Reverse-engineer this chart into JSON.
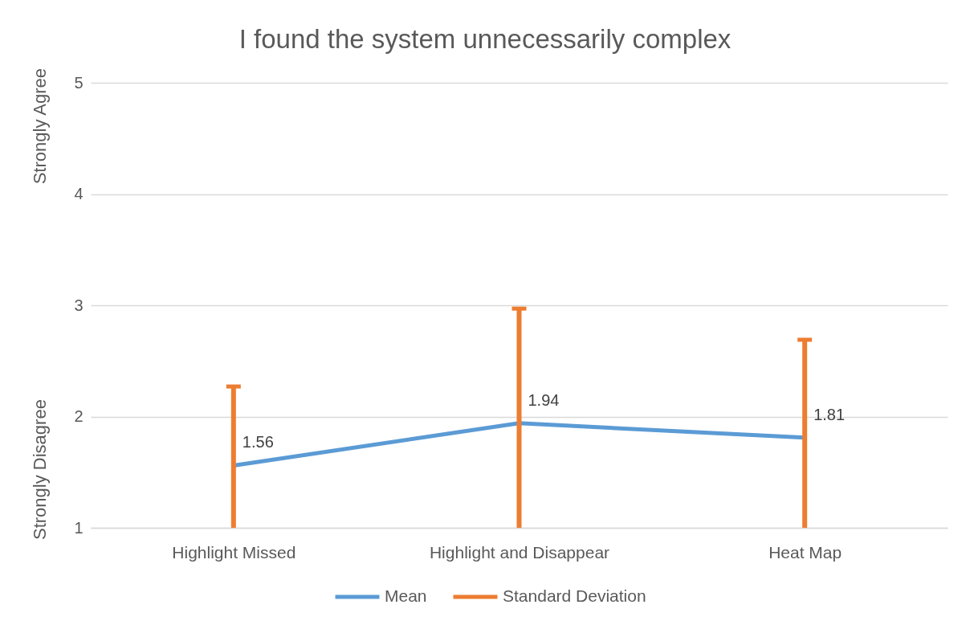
{
  "chart_data": {
    "type": "line",
    "title": "I found the system unnecessarily complex",
    "categories": [
      "Highlight Missed",
      "Highlight and Disappear",
      "Heat Map"
    ],
    "series": [
      {
        "name": "Mean",
        "color": "#5b9bd5",
        "values": [
          1.56,
          1.94,
          1.81
        ],
        "value_labels": [
          "1.56",
          "1.94",
          "1.81"
        ],
        "errors": [
          [
            1,
            2.27
          ],
          [
            1,
            2.97
          ],
          [
            1,
            2.69
          ]
        ]
      },
      {
        "name": "Standard Deviation",
        "color": "#ed7d31",
        "values": [
          null,
          null,
          null
        ]
      }
    ],
    "ylim": [
      1,
      5
    ],
    "yticks": [
      1,
      2,
      3,
      4,
      5
    ],
    "grid": "y",
    "legend": "bottom",
    "annotations": [
      "Strongly Agree",
      "Strongly Disagree"
    ]
  }
}
